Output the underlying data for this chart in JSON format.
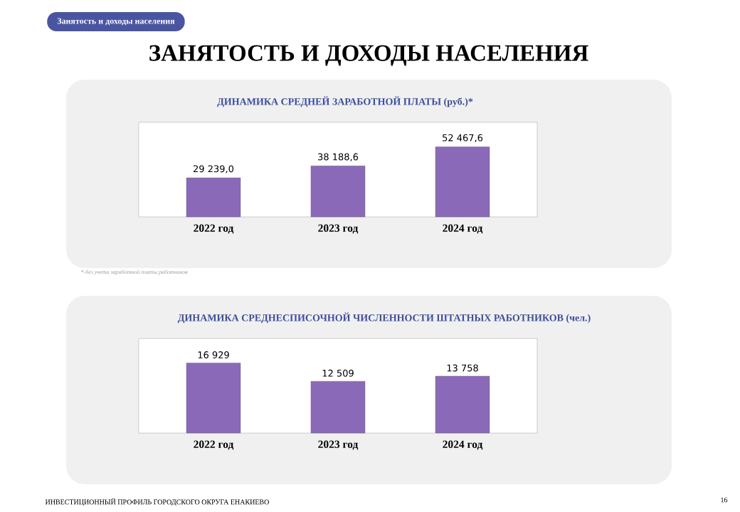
{
  "chart_data": [
    {
      "type": "other",
      "title": "ЗАНЯТОСТЬ И ДОХОДЫ НАСЕЛЕНИЯ",
      "annotations": [
        "Занятость и доходы населения",
        "ИНВЕСТИЦИОННЫЙ ПРОФИЛЬ ГОРОДСКОГО ОКРУГА ЕНАКИЕВО",
        "16"
      ]
    },
    {
      "type": "bar",
      "title": "ДИНАМИКА СРЕДНЕЙ ЗАРАБОТНОЙ ПЛАТЫ (руб.)*",
      "categories": [
        "2022 год",
        "2023 год",
        "2024 год"
      ],
      "values": [
        29239.0,
        38188.6,
        52467.6
      ],
      "value_labels": [
        "29 239,0",
        "38 188,6",
        "52 467,6"
      ],
      "color": "#8a6ab8",
      "annotations": [
        "*-без учета заработной платы работников"
      ]
    },
    {
      "type": "bar",
      "title": "ДИНАМИКА СРЕДНЕСПИСОЧНОЙ ЧИСЛЕННОСТИ ШТАТНЫХ РАБОТНИКОВ (чел.)",
      "categories": [
        "2022 год",
        "2023 год",
        "2024 год"
      ],
      "values": [
        16929,
        12509,
        13758
      ],
      "value_labels": [
        "16 929",
        "12 509",
        "13 758"
      ],
      "color": "#8a6ab8"
    }
  ]
}
